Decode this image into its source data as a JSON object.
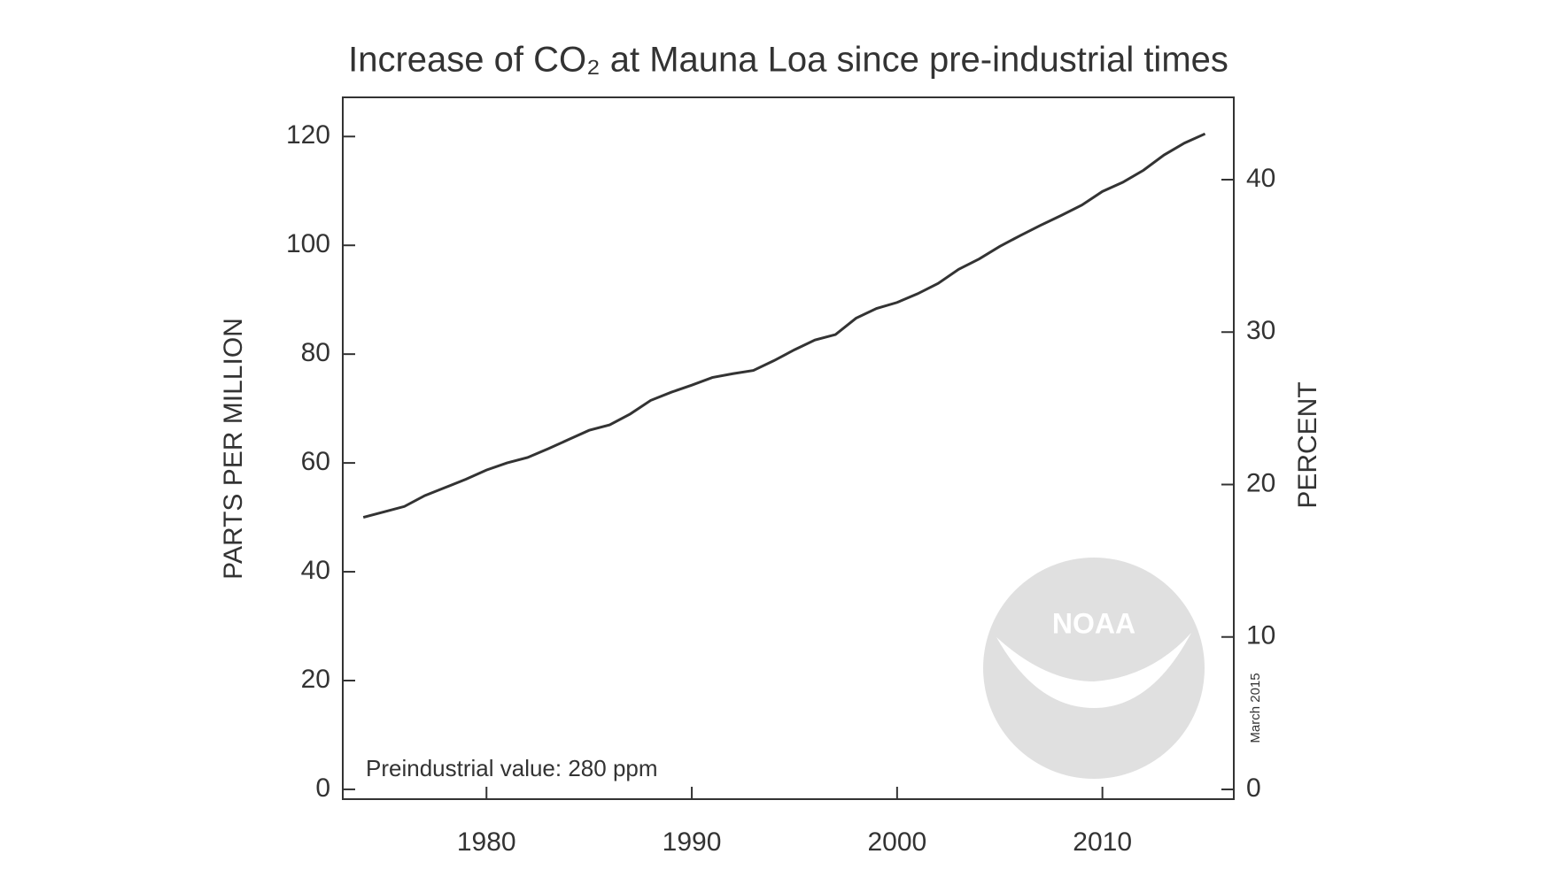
{
  "chart_data": {
    "type": "line",
    "title": "Increase of CO₂ at Mauna Loa since pre-industrial times",
    "ylabel": "PARTS PER MILLION",
    "y2label": "PERCENT",
    "annotation": "Preindustrial value: 280 ppm",
    "date_note": "March 2015",
    "logo_text": "NOAA",
    "x": [
      1974,
      1975,
      1976,
      1977,
      1978,
      1979,
      1980,
      1981,
      1982,
      1983,
      1984,
      1985,
      1986,
      1987,
      1988,
      1989,
      1990,
      1991,
      1992,
      1993,
      1994,
      1995,
      1996,
      1997,
      1998,
      1999,
      2000,
      2001,
      2002,
      2003,
      2004,
      2005,
      2006,
      2007,
      2008,
      2009,
      2010,
      2011,
      2012,
      2013,
      2014,
      2015
    ],
    "values": [
      50,
      51,
      52,
      54,
      55.5,
      57,
      58.7,
      60,
      61,
      62.6,
      64.3,
      66,
      67,
      69,
      71.5,
      73,
      74.3,
      75.7,
      76.4,
      77,
      78.8,
      80.8,
      82.6,
      83.6,
      86.6,
      88.4,
      89.5,
      91.1,
      93,
      95.6,
      97.5,
      99.8,
      101.8,
      103.7,
      105.5,
      107.4,
      109.9,
      111.6,
      113.8,
      116.6,
      118.8,
      120.5
    ],
    "color": "#333333",
    "xlim": [
      1973,
      2016.4
    ],
    "xticks": [
      1980,
      1990,
      2000,
      2010
    ],
    "ylim": [
      -1.8,
      127.2
    ],
    "yticks": [
      0,
      20,
      40,
      60,
      80,
      100,
      120
    ],
    "y2lim": [
      -0.64,
      45.4
    ],
    "y2ticks": [
      0,
      10,
      20,
      30,
      40
    ]
  }
}
